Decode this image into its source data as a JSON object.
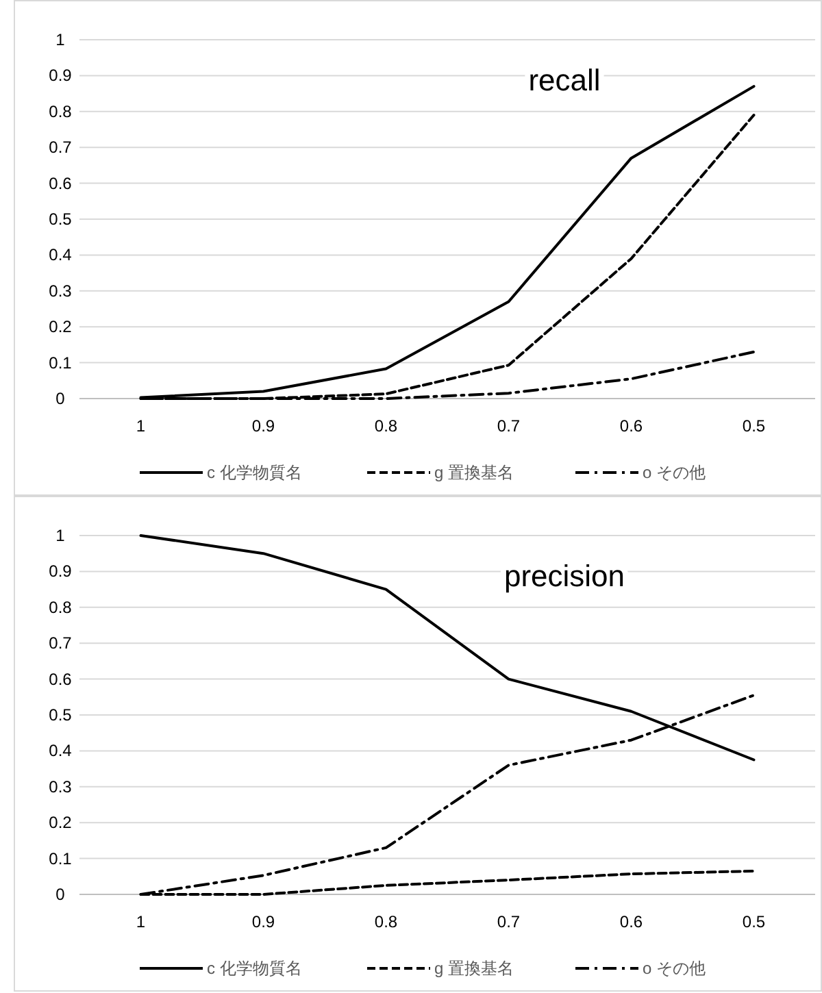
{
  "chart_data": [
    {
      "type": "line",
      "title": "recall",
      "categories": [
        "1",
        "0.9",
        "0.8",
        "0.7",
        "0.6",
        "0.5"
      ],
      "ylim": [
        0,
        1
      ],
      "yticks": [
        0,
        0.1,
        0.2,
        0.3,
        0.4,
        0.5,
        0.6,
        0.7,
        0.8,
        0.9,
        1
      ],
      "grid": "y",
      "legend": "bottom",
      "marker": "none",
      "series": [
        {
          "name": "c 化学物質名",
          "color": "#000000",
          "line_style": "solid",
          "values": [
            0.003,
            0.02,
            0.083,
            0.27,
            0.67,
            0.87
          ]
        },
        {
          "name": "g 置換基名",
          "color": "#000000",
          "line_style": "dashed",
          "values": [
            0,
            0,
            0.013,
            0.093,
            0.39,
            0.79
          ]
        },
        {
          "name": "o その他",
          "color": "#000000",
          "line_style": "dashdot",
          "values": [
            0,
            0,
            0,
            0.015,
            0.055,
            0.13
          ]
        }
      ]
    },
    {
      "type": "line",
      "title": "precision",
      "categories": [
        "1",
        "0.9",
        "0.8",
        "0.7",
        "0.6",
        "0.5"
      ],
      "ylim": [
        0,
        1
      ],
      "yticks": [
        0,
        0.1,
        0.2,
        0.3,
        0.4,
        0.5,
        0.6,
        0.7,
        0.8,
        0.9,
        1
      ],
      "grid": "y",
      "legend": "bottom",
      "marker": "none",
      "series": [
        {
          "name": "c 化学物質名",
          "color": "#000000",
          "line_style": "solid",
          "values": [
            1,
            0.95,
            0.85,
            0.6,
            0.51,
            0.375
          ]
        },
        {
          "name": "g 置換基名",
          "color": "#000000",
          "line_style": "dashed",
          "values": [
            0,
            0,
            0.025,
            0.04,
            0.057,
            0.065
          ]
        },
        {
          "name": "o その他",
          "color": "#000000",
          "line_style": "dashdot",
          "values": [
            0,
            0.053,
            0.13,
            0.36,
            0.43,
            0.555
          ]
        }
      ]
    }
  ]
}
